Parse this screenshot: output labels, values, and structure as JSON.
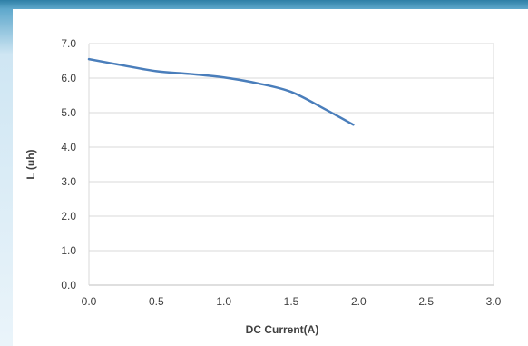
{
  "chart_data": {
    "type": "line",
    "title": "",
    "xlabel": "DC Current(A)",
    "ylabel": "L (uh)",
    "xlim": [
      0.0,
      3.0
    ],
    "ylim": [
      0.0,
      7.0
    ],
    "x_ticks": [
      "0.0",
      "0.5",
      "1.0",
      "1.5",
      "2.0",
      "2.5",
      "3.0"
    ],
    "y_ticks": [
      "0.0",
      "1.0",
      "2.0",
      "3.0",
      "4.0",
      "5.0",
      "6.0",
      "7.0"
    ],
    "grid": "horizontal",
    "legend": "none",
    "series": [
      {
        "color": "#4a7ebb",
        "x": [
          0.0,
          0.25,
          0.5,
          0.75,
          1.0,
          1.25,
          1.5,
          1.75,
          1.96
        ],
        "y": [
          6.55,
          6.37,
          6.2,
          6.12,
          6.02,
          5.85,
          5.6,
          5.1,
          4.65
        ]
      }
    ]
  }
}
